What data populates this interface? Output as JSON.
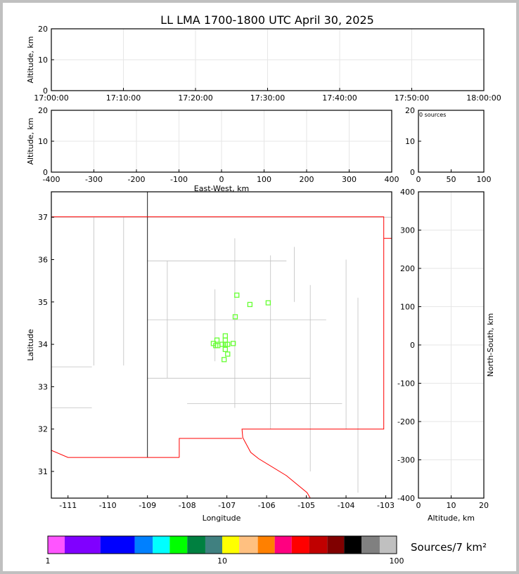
{
  "title": "LL LMA 1700-1800 UTC April 30, 2025",
  "colors": {
    "points": "#66ff33",
    "border_red": "#ff0000",
    "county": "#c0c0c0",
    "grid": "#e6e6e6"
  },
  "chart_data": [
    {
      "type": "scatter",
      "id": "time_alt",
      "ylabel": "Altitude, km",
      "ylim": [
        0,
        20
      ],
      "yticks": [
        0,
        10,
        20
      ],
      "xticks": [
        "17:00:00",
        "17:10:00",
        "17:20:00",
        "17:30:00",
        "17:40:00",
        "17:50:00",
        "18:00:00"
      ],
      "grid": true,
      "points": []
    },
    {
      "type": "scatter",
      "id": "ew_alt",
      "ylabel": "Altitude, km",
      "xlabel": "East-West, km",
      "xlim": [
        -400,
        400
      ],
      "ylim": [
        0,
        20
      ],
      "xticks": [
        -400,
        -300,
        -200,
        -100,
        0,
        100,
        200,
        300,
        400
      ],
      "yticks": [
        0,
        10,
        20
      ],
      "grid": true,
      "points": []
    },
    {
      "type": "bar",
      "id": "alt_hist",
      "annotation": "0 sources",
      "xlim": [
        0,
        100
      ],
      "ylim": [
        0,
        20
      ],
      "xticks": [
        0,
        50,
        100
      ],
      "yticks": [
        0,
        10,
        20
      ],
      "values": []
    },
    {
      "type": "scatter",
      "id": "plan",
      "xlabel": "Longitude",
      "ylabel": "Latitude",
      "xlim": [
        -111.42,
        -102.85
      ],
      "ylim": [
        30.37,
        37.6
      ],
      "xticks": [
        -111,
        -110,
        -109,
        -108,
        -107,
        -106,
        -105,
        -104,
        -103
      ],
      "yticks": [
        31,
        32,
        33,
        34,
        35,
        36,
        37
      ],
      "grid": false,
      "points": [
        [
          -106.75,
          35.16
        ],
        [
          -106.42,
          34.94
        ],
        [
          -105.96,
          34.98
        ],
        [
          -106.79,
          34.65
        ],
        [
          -107.04,
          34.2
        ],
        [
          -107.04,
          34.1
        ],
        [
          -107.25,
          34.1
        ],
        [
          -107.04,
          34.0
        ],
        [
          -107.34,
          34.02
        ],
        [
          -107.23,
          33.97
        ],
        [
          -107.12,
          34.0
        ],
        [
          -106.98,
          34.0
        ],
        [
          -106.84,
          34.02
        ],
        [
          -107.28,
          33.97
        ],
        [
          -107.04,
          33.88
        ],
        [
          -106.98,
          33.77
        ],
        [
          -107.07,
          33.64
        ]
      ]
    },
    {
      "type": "scatter",
      "id": "alt_ns",
      "xlabel": "Altitude, km",
      "ylabel": "North-South, km",
      "xlim": [
        0,
        20
      ],
      "ylim": [
        -400,
        400
      ],
      "xticks": [
        0,
        10,
        20
      ],
      "yticks": [
        -400,
        -300,
        -200,
        -100,
        0,
        100,
        200,
        300,
        400
      ],
      "grid": true,
      "points": []
    },
    {
      "type": "colorbar",
      "label": "Sources/7 km²",
      "scale": "log",
      "range": [
        1,
        100
      ],
      "ticks": [
        "1",
        "10",
        "100"
      ],
      "colors": [
        "#ff55ff",
        "#8000ff",
        "#0000ff",
        "#0080ff",
        "#00ffff",
        "#00ff00",
        "#008040",
        "#408080",
        "#ffff00",
        "#ffc080",
        "#ff8000",
        "#ff0080",
        "#ff0000",
        "#c00000",
        "#800000",
        "#000000",
        "#808080",
        "#c0c0c0",
        "#ffffff"
      ]
    }
  ]
}
